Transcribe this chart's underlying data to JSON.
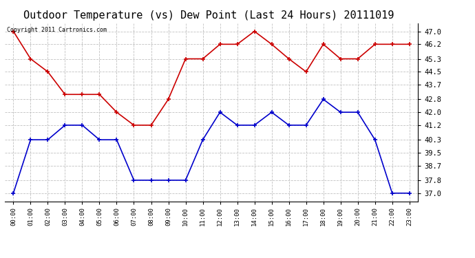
{
  "title": "Outdoor Temperature (vs) Dew Point (Last 24 Hours) 20111019",
  "copyright_text": "Copyright 2011 Cartronics.com",
  "hours": [
    "00:00",
    "01:00",
    "02:00",
    "03:00",
    "04:00",
    "05:00",
    "06:00",
    "07:00",
    "08:00",
    "09:00",
    "10:00",
    "11:00",
    "12:00",
    "13:00",
    "14:00",
    "15:00",
    "16:00",
    "17:00",
    "18:00",
    "19:00",
    "20:00",
    "21:00",
    "22:00",
    "23:00"
  ],
  "temp_red": [
    47.0,
    45.3,
    44.5,
    43.1,
    43.1,
    43.1,
    42.0,
    41.2,
    41.2,
    42.8,
    45.3,
    45.3,
    46.2,
    46.2,
    47.0,
    46.2,
    45.3,
    44.5,
    46.2,
    45.3,
    45.3,
    46.2,
    46.2,
    46.2
  ],
  "dew_blue": [
    37.0,
    40.3,
    40.3,
    41.2,
    41.2,
    40.3,
    40.3,
    37.8,
    37.8,
    37.8,
    37.8,
    40.3,
    42.0,
    41.2,
    41.2,
    42.0,
    41.2,
    41.2,
    42.8,
    42.0,
    42.0,
    40.3,
    37.0,
    37.0
  ],
  "ylim_min": 36.5,
  "ylim_max": 47.5,
  "yticks": [
    37.0,
    37.8,
    38.7,
    39.5,
    40.3,
    41.2,
    42.0,
    42.8,
    43.7,
    44.5,
    45.3,
    46.2,
    47.0
  ],
  "red_color": "#cc0000",
  "blue_color": "#0000cc",
  "bg_color": "#ffffff",
  "grid_color": "#c0c0c0",
  "title_fontsize": 11,
  "marker": "+"
}
